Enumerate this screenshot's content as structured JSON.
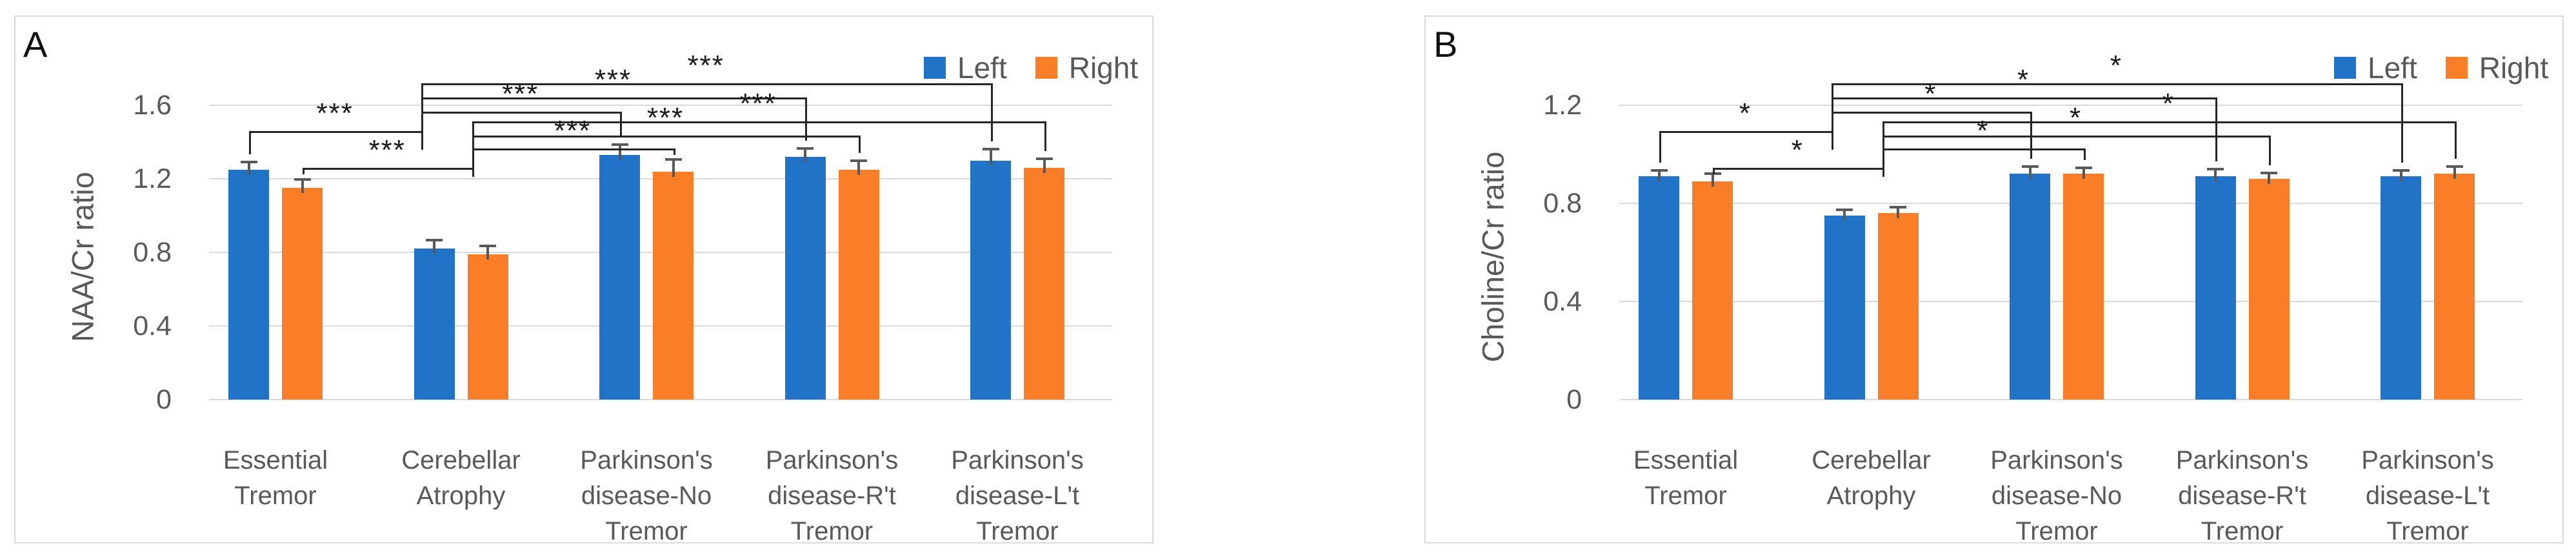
{
  "chart_data": [
    {
      "type": "bar",
      "panel_letter": "A",
      "ylabel": "NAA/Cr ratio",
      "ylim": [
        0,
        1.6
      ],
      "yticks": [
        "1.6",
        "1.2",
        "0.8",
        "0.4",
        "0"
      ],
      "ytick_values": [
        1.6,
        1.2,
        0.8,
        0.4,
        0
      ],
      "grid": true,
      "legend_position": "top-right",
      "categories": [
        "Essential\nTremor",
        "Cerebellar\nAtrophy",
        "Parkinson's\ndisease-No\nTremor",
        "Parkinson's\ndisease-R't\nTremor",
        "Parkinson's\ndisease-L't\nTremor"
      ],
      "series": [
        {
          "name": "Left",
          "color": "#2173C8",
          "values": [
            1.25,
            0.82,
            1.33,
            1.32,
            1.3
          ],
          "errors": [
            0.04,
            0.045,
            0.055,
            0.045,
            0.06
          ]
        },
        {
          "name": "Right",
          "color": "#F97E27",
          "values": [
            1.15,
            0.79,
            1.24,
            1.25,
            1.26
          ],
          "errors": [
            0.045,
            0.045,
            0.065,
            0.05,
            0.05
          ]
        }
      ],
      "significance": [
        {
          "a": {
            "category": 1,
            "series": "Left"
          },
          "b": {
            "category": 4,
            "series": "Left"
          },
          "label": "***",
          "tier": 1
        },
        {
          "a": {
            "category": 1,
            "series": "Left"
          },
          "b": {
            "category": 3,
            "series": "Left"
          },
          "label": "***",
          "tier": 2
        },
        {
          "a": {
            "category": 1,
            "series": "Left"
          },
          "b": {
            "category": 2,
            "series": "Left"
          },
          "label": "***",
          "tier": 3
        },
        {
          "a": {
            "category": 0,
            "series": "Left"
          },
          "b": {
            "category": 1,
            "series": "Left"
          },
          "label": "***",
          "tier": 4
        },
        {
          "a": {
            "category": 1,
            "series": "Right"
          },
          "b": {
            "category": 4,
            "series": "Right"
          },
          "label": "***",
          "tier": 5
        },
        {
          "a": {
            "category": 1,
            "series": "Right"
          },
          "b": {
            "category": 3,
            "series": "Right"
          },
          "label": "***",
          "tier": 6
        },
        {
          "a": {
            "category": 1,
            "series": "Right"
          },
          "b": {
            "category": 2,
            "series": "Right"
          },
          "label": "***",
          "tier": 7
        },
        {
          "a": {
            "category": 0,
            "series": "Right"
          },
          "b": {
            "category": 1,
            "series": "Right"
          },
          "label": "***",
          "tier": 8
        }
      ]
    },
    {
      "type": "bar",
      "panel_letter": "B",
      "ylabel": "Choline/Cr ratio",
      "ylim": [
        0,
        1.2
      ],
      "yticks": [
        "1.2",
        "0.8",
        "0.4",
        "0"
      ],
      "ytick_values": [
        1.2,
        0.8,
        0.4,
        0
      ],
      "grid": true,
      "legend_position": "top-right",
      "categories": [
        "Essential\nTremor",
        "Cerebellar\nAtrophy",
        "Parkinson's\ndisease-No\nTremor",
        "Parkinson's\ndisease-R't\nTremor",
        "Parkinson's\ndisease-L't\nTremor"
      ],
      "series": [
        {
          "name": "Left",
          "color": "#2173C8",
          "values": [
            0.91,
            0.75,
            0.92,
            0.91,
            0.91
          ],
          "errors": [
            0.025,
            0.025,
            0.03,
            0.03,
            0.025
          ]
        },
        {
          "name": "Right",
          "color": "#F97E27",
          "values": [
            0.89,
            0.76,
            0.92,
            0.9,
            0.92
          ],
          "errors": [
            0.03,
            0.025,
            0.025,
            0.025,
            0.03
          ]
        }
      ],
      "significance": [
        {
          "a": {
            "category": 1,
            "series": "Left"
          },
          "b": {
            "category": 4,
            "series": "Left"
          },
          "label": "*",
          "tier": 1
        },
        {
          "a": {
            "category": 1,
            "series": "Left"
          },
          "b": {
            "category": 3,
            "series": "Left"
          },
          "label": "*",
          "tier": 2
        },
        {
          "a": {
            "category": 1,
            "series": "Left"
          },
          "b": {
            "category": 2,
            "series": "Left"
          },
          "label": "*",
          "tier": 3
        },
        {
          "a": {
            "category": 0,
            "series": "Left"
          },
          "b": {
            "category": 1,
            "series": "Left"
          },
          "label": "*",
          "tier": 4
        },
        {
          "a": {
            "category": 1,
            "series": "Right"
          },
          "b": {
            "category": 4,
            "series": "Right"
          },
          "label": "*",
          "tier": 5
        },
        {
          "a": {
            "category": 1,
            "series": "Right"
          },
          "b": {
            "category": 3,
            "series": "Right"
          },
          "label": "*",
          "tier": 6
        },
        {
          "a": {
            "category": 1,
            "series": "Right"
          },
          "b": {
            "category": 2,
            "series": "Right"
          },
          "label": "*",
          "tier": 7
        },
        {
          "a": {
            "category": 0,
            "series": "Right"
          },
          "b": {
            "category": 1,
            "series": "Right"
          },
          "label": "*",
          "tier": 8
        }
      ]
    }
  ],
  "legend": {
    "left_label": "Left",
    "right_label": "Right"
  },
  "colors": {
    "left_series": "#2173C8",
    "right_series": "#F97E27",
    "axis_text": "#595959",
    "gridline": "#d9d9d9",
    "bracket": "#262626",
    "error_bar": "#595959"
  }
}
